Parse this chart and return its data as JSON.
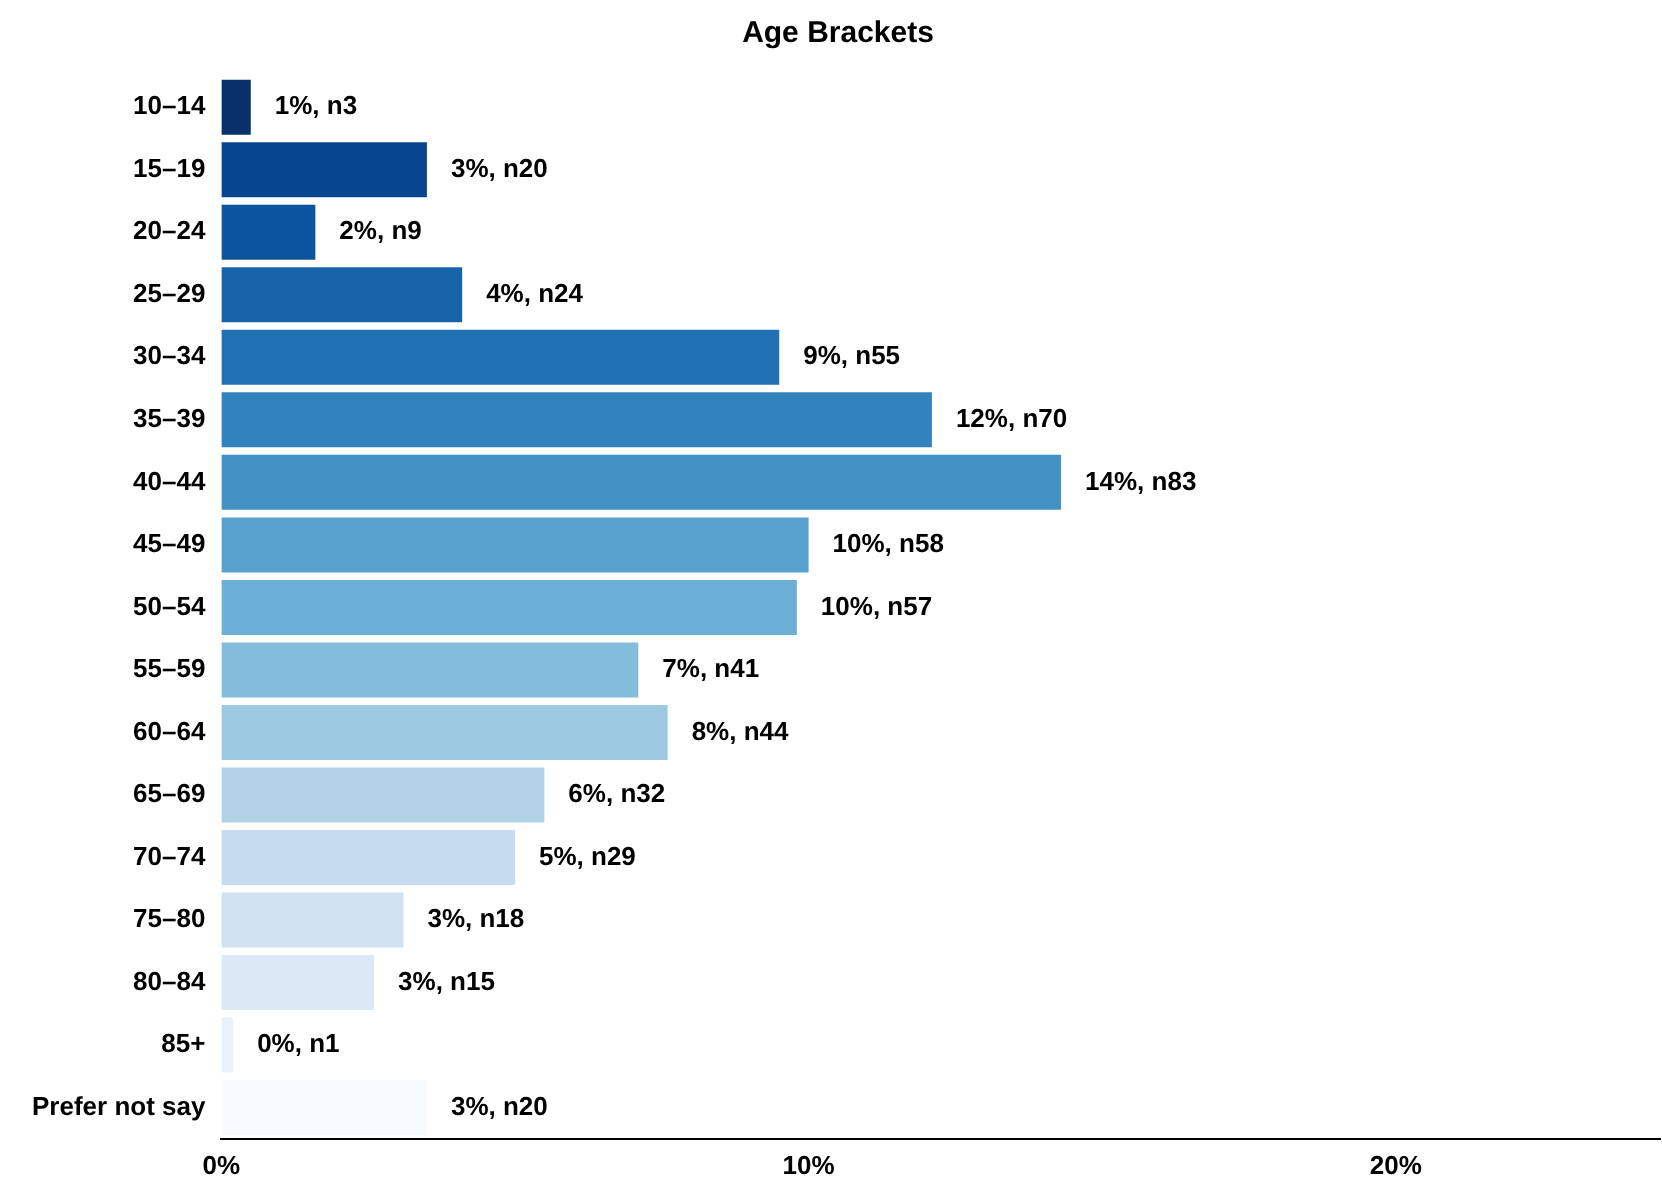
{
  "chart_data": {
    "type": "bar",
    "orientation": "horizontal",
    "title": "Age Brackets",
    "categories": [
      "10–14",
      "15–19",
      "20–24",
      "25–29",
      "30–34",
      "35–39",
      "40–44",
      "45–49",
      "50–54",
      "55–59",
      "60–64",
      "65–69",
      "70–74",
      "75–80",
      "80–84",
      "85+",
      "Prefer not say"
    ],
    "values": [
      0.5,
      3.5,
      1.6,
      4.1,
      9.5,
      12.1,
      14.3,
      10.0,
      9.8,
      7.1,
      7.6,
      5.5,
      5.0,
      3.1,
      2.6,
      0.2,
      3.5
    ],
    "value_labels": [
      "1%, n3",
      "3%, n20",
      "2%, n9",
      "4%, n24",
      "9%, n55",
      "12%, n70",
      "14%, n83",
      "10%, n58",
      "10%, n57",
      "7%, n41",
      "8%, n44",
      "6%, n32",
      "5%, n29",
      "3%, n18",
      "3%, n15",
      "0%, n1",
      "3%, n20"
    ],
    "colors": [
      "#08306b",
      "#08458f",
      "#0b559f",
      "#1764ab",
      "#2171b5",
      "#3282be",
      "#4292c6",
      "#58a1cf",
      "#6baed6",
      "#84bcdb",
      "#9ecae1",
      "#b1d2e7",
      "#c6dbef",
      "#d0e1f2",
      "#dbe9f6",
      "#e9f2fa",
      "#f7fbff"
    ],
    "xlim": [
      0,
      24.5
    ],
    "xticks": [
      {
        "value": 0,
        "label": "0%"
      },
      {
        "value": 10,
        "label": "10%"
      },
      {
        "value": 20,
        "label": "20%"
      }
    ],
    "grid": false,
    "legend": false
  }
}
